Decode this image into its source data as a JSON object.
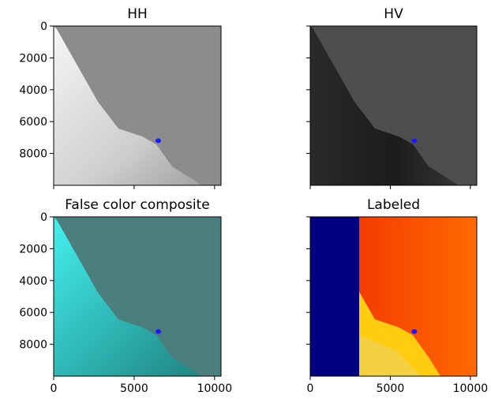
{
  "chart_data": [
    {
      "type": "image",
      "title": "HH",
      "xlim": [
        0,
        10400
      ],
      "ylim": [
        10000,
        0
      ],
      "yticks": [
        0,
        2000,
        4000,
        6000,
        8000
      ],
      "x": [
        6500
      ],
      "values": [
        7200
      ],
      "color": "#1a1aff"
    },
    {
      "type": "image",
      "title": "HV",
      "xlim": [
        0,
        10400
      ],
      "ylim": [
        10000,
        0
      ],
      "x": [
        6500
      ],
      "values": [
        7200
      ],
      "color": "#1a1aff"
    },
    {
      "type": "image",
      "title": "False color composite",
      "xlim": [
        0,
        10400
      ],
      "ylim": [
        10000,
        0
      ],
      "xticks": [
        0,
        5000,
        10000
      ],
      "yticks": [
        0,
        2000,
        4000,
        6000,
        8000
      ],
      "x": [
        6500
      ],
      "values": [
        7200
      ],
      "color": "#1a1aff"
    },
    {
      "type": "image",
      "title": "Labeled",
      "xlim": [
        0,
        10400
      ],
      "ylim": [
        10000,
        0
      ],
      "xticks": [
        0,
        5000,
        10000
      ],
      "x": [
        6500
      ],
      "values": [
        7200
      ],
      "color": "#1a1aff"
    }
  ]
}
